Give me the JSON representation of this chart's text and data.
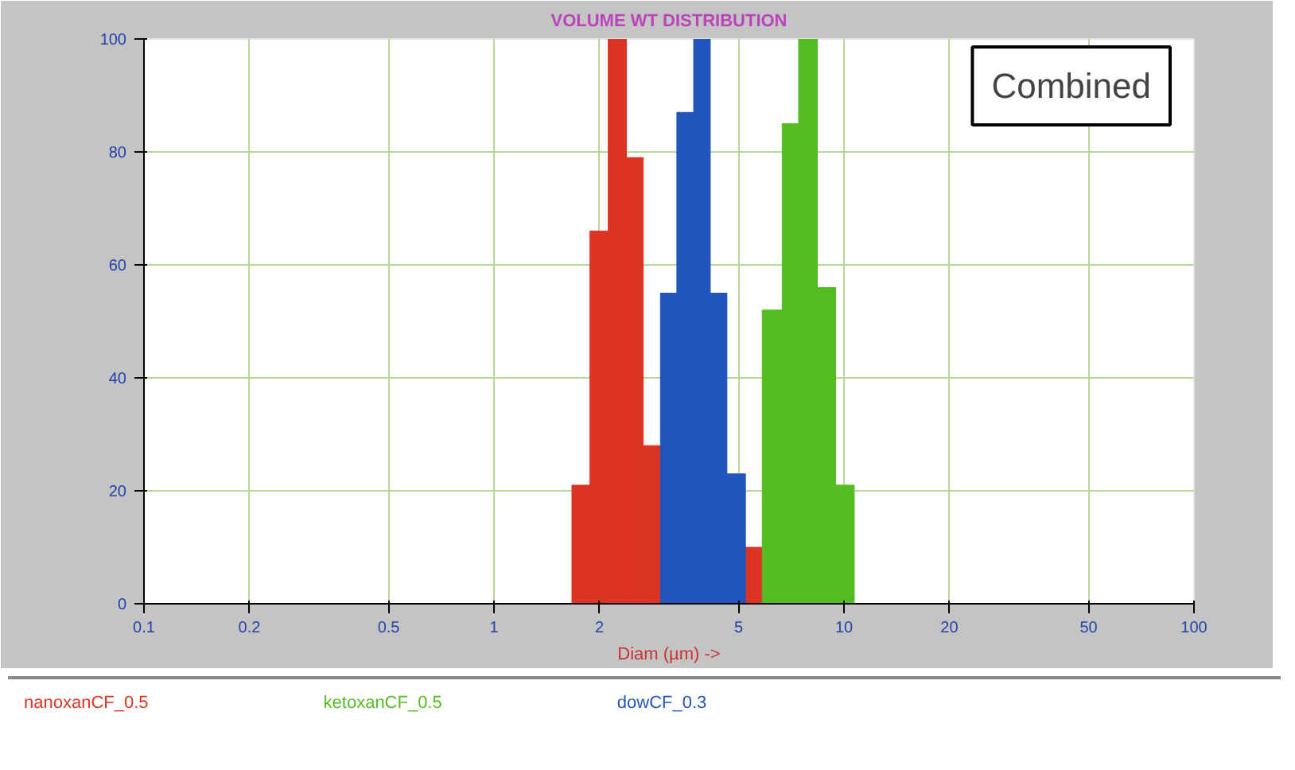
{
  "chart_data": {
    "type": "histogram",
    "title": "VOLUME WT DISTRIBUTION",
    "xlabel": "Diam (µm) ->",
    "log": "x",
    "xlim": [
      0.1,
      100
    ],
    "xticks": [
      0.1,
      0.2,
      0.5,
      1,
      2,
      5,
      10,
      20,
      50,
      100
    ],
    "ylim": [
      0,
      100
    ],
    "yticks": [
      0,
      20,
      40,
      60,
      80,
      100
    ],
    "grid": true,
    "legend": "bottom",
    "annotations": [
      "Combined"
    ],
    "bins": [
      1.67,
      1.88,
      2.12,
      2.39,
      2.67,
      2.99,
      3.33,
      3.72,
      4.15,
      4.63,
      5.23,
      5.84,
      6.66,
      7.42,
      8.39,
      9.47,
      10.7
    ],
    "series": [
      {
        "name": "nanoxanCF_0.5",
        "color": "#dd3322",
        "values": [
          21,
          66,
          100,
          79,
          28,
          null,
          null,
          null,
          null,
          null,
          10,
          null,
          null,
          null,
          null,
          null
        ]
      },
      {
        "name": "ketoxanCF_0.5",
        "color": "#55bb22",
        "values": [
          null,
          null,
          null,
          null,
          null,
          null,
          null,
          null,
          null,
          null,
          null,
          52,
          85,
          100,
          56,
          21
        ]
      },
      {
        "name": "dowCF_0.3",
        "color": "#2255bb",
        "values": [
          null,
          null,
          null,
          null,
          null,
          55,
          87,
          100,
          55,
          23,
          null,
          null,
          null,
          null,
          null,
          null
        ]
      }
    ]
  }
}
